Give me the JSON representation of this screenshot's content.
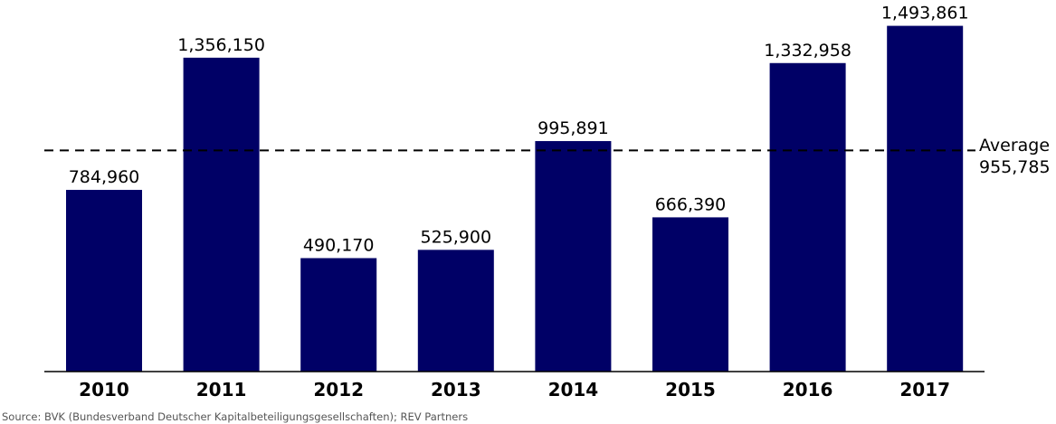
{
  "chart_data": {
    "type": "bar",
    "categories": [
      "2010",
      "2011",
      "2012",
      "2013",
      "2014",
      "2015",
      "2016",
      "2017"
    ],
    "values": [
      784960,
      1356150,
      490170,
      525900,
      995891,
      666390,
      1332958,
      1493861
    ],
    "value_labels": [
      "784,960",
      "1,356,150",
      "490,170",
      "525,900",
      "995,891",
      "666,390",
      "1,332,958",
      "1,493,861"
    ],
    "ylim": [
      0,
      1500000
    ],
    "grid": false,
    "reference_line": {
      "value": 955785,
      "label": "Average",
      "value_label": "955,785",
      "style": "dashed"
    },
    "bar_color": "#000066",
    "title": "",
    "xlabel": "",
    "ylabel": "",
    "source": "Source: BVK (Bundesverband Deutscher Kapitalbeteiligungsgesellschaften);  REV Partners"
  }
}
